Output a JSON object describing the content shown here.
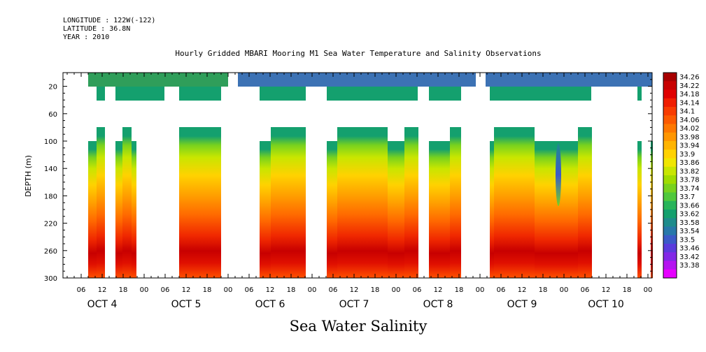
{
  "header": {
    "longitude": "LONGITUDE : 122W(-122)",
    "latitude": "LATITUDE : 36.8N",
    "year": "YEAR : 2010"
  },
  "chart_data": {
    "type": "heatmap",
    "title": "Hourly Gridded MBARI Mooring M1 Sea Water Temperature and Salinity Observations",
    "xlabel": "Sea Water Salinity",
    "ylabel": "DEPTH (m)",
    "y_ticks": [
      20,
      60,
      100,
      140,
      180,
      220,
      260,
      300
    ],
    "ylim": [
      300,
      0
    ],
    "y_reversed": true,
    "x_hour_ticks": [
      "06",
      "12",
      "18",
      "00",
      "06",
      "12",
      "18",
      "00",
      "06",
      "12",
      "18",
      "00",
      "06",
      "12",
      "18",
      "00",
      "06",
      "12",
      "18",
      "00",
      "06",
      "12",
      "18",
      "00",
      "06",
      "12",
      "18",
      "00"
    ],
    "x_day_labels": [
      "OCT  4",
      "OCT  5",
      "OCT  6",
      "OCT  7",
      "OCT  8",
      "OCT  9",
      "OCT 10"
    ],
    "colorbar": {
      "levels": [
        "34.26",
        "34.22",
        "34.18",
        "34.14",
        "34.1",
        "34.06",
        "34.02",
        "33.98",
        "33.94",
        "33.9",
        "33.86",
        "33.82",
        "33.78",
        "33.74",
        "33.7",
        "33.66",
        "33.62",
        "33.58",
        "33.54",
        "33.5",
        "33.46",
        "33.42",
        "33.38"
      ],
      "colors": [
        "#a80000",
        "#c80000",
        "#e00000",
        "#f01e00",
        "#f83c00",
        "#fc5a00",
        "#fe7800",
        "#ff9600",
        "#ffb400",
        "#ffd200",
        "#f0e600",
        "#c8e600",
        "#a0dc00",
        "#78d21e",
        "#50c83c",
        "#28b45a",
        "#14a06e",
        "#1e8c8c",
        "#2878aa",
        "#3c5ac8",
        "#5a3cdc",
        "#8228e6",
        "#b414f0",
        "#e600ff"
      ]
    },
    "salinity_summary": {
      "surface_20m": "33.5-33.66",
      "depth_40m": "33.62-33.66",
      "depth_100_140m": "33.78-33.94",
      "depth_180m": "33.98-34.06",
      "depth_260m": "34.18-34.26",
      "anomaly_oct9_140_180m": "33.54"
    }
  }
}
